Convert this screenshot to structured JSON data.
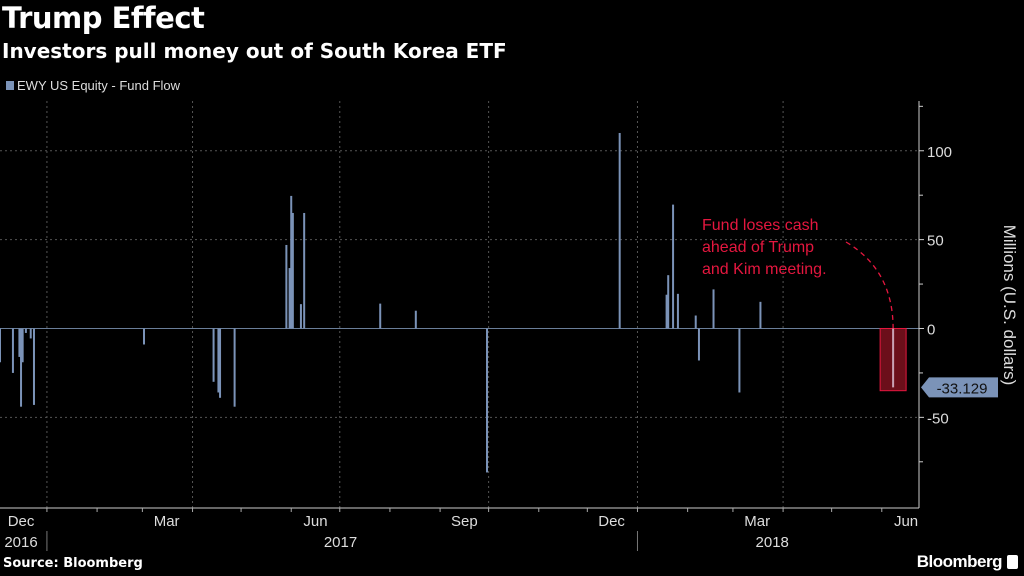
{
  "header": {
    "title": "Trump Effect",
    "subtitle": "Investors pull money out of South Korea ETF"
  },
  "footer": {
    "source": "Source: Bloomberg",
    "brand": "Bloomberg"
  },
  "chart_data": {
    "type": "bar",
    "title": "Trump Effect",
    "subtitle": "Investors pull money out of South Korea ETF",
    "ylabel": "Millions (U.S. dollars)",
    "xlabel": "",
    "ylim": [
      -101,
      128
    ],
    "xlim": [
      "2016-12-03",
      "2018-06-24"
    ],
    "yaxis_side": "right",
    "yticks": [
      100,
      50,
      0,
      -50
    ],
    "ytick_labels": [
      "100",
      "50",
      "0",
      "-50"
    ],
    "xtick_labels": [
      {
        "month": "Dec",
        "date": "2016-12-16",
        "year": "2016"
      },
      {
        "month": "Mar",
        "date": "2017-03-16"
      },
      {
        "month": "Jun",
        "date": "2017-06-16",
        "year": "2017"
      },
      {
        "month": "Sep",
        "date": "2017-09-16"
      },
      {
        "month": "Dec",
        "date": "2017-12-16"
      },
      {
        "month": "Mar",
        "date": "2018-03-16",
        "year": "2018"
      },
      {
        "month": "Jun",
        "date": "2018-06-16"
      }
    ],
    "grid": true,
    "legend": {
      "position": "top-left"
    },
    "colors": {
      "bar": "#7b93b8",
      "highlight": "#e5173f",
      "highlight_fill": "#6b0f1a",
      "grid": "#555555"
    },
    "series": [
      {
        "name": "EWY US Equity - Fund Flow",
        "points": [
          {
            "date": "2016-12-03",
            "value": -19
          },
          {
            "date": "2016-12-11",
            "value": -25
          },
          {
            "date": "2016-12-15",
            "value": -16
          },
          {
            "date": "2016-12-16",
            "value": -44
          },
          {
            "date": "2016-12-17",
            "value": -19
          },
          {
            "date": "2016-12-19",
            "value": -2.5
          },
          {
            "date": "2016-12-22",
            "value": -5.6
          },
          {
            "date": "2016-12-24",
            "value": -43
          },
          {
            "date": "2017-03-02",
            "value": -9
          },
          {
            "date": "2017-04-14",
            "value": -30
          },
          {
            "date": "2017-04-17",
            "value": -36
          },
          {
            "date": "2017-04-18",
            "value": -39
          },
          {
            "date": "2017-04-27",
            "value": -44
          },
          {
            "date": "2017-05-29",
            "value": 47
          },
          {
            "date": "2017-05-31",
            "value": 34
          },
          {
            "date": "2017-06-01",
            "value": 74.6
          },
          {
            "date": "2017-06-02",
            "value": 65
          },
          {
            "date": "2017-06-07",
            "value": 13.7
          },
          {
            "date": "2017-06-09",
            "value": 65
          },
          {
            "date": "2017-07-26",
            "value": 14
          },
          {
            "date": "2017-08-17",
            "value": 10
          },
          {
            "date": "2017-09-30",
            "value": -81
          },
          {
            "date": "2017-12-21",
            "value": 110
          },
          {
            "date": "2018-01-19",
            "value": 19
          },
          {
            "date": "2018-01-20",
            "value": 30
          },
          {
            "date": "2018-01-23",
            "value": 69.7
          },
          {
            "date": "2018-01-26",
            "value": 19.5
          },
          {
            "date": "2018-02-06",
            "value": 7.3
          },
          {
            "date": "2018-02-08",
            "value": -18
          },
          {
            "date": "2018-02-17",
            "value": 22
          },
          {
            "date": "2018-03-05",
            "value": -36
          },
          {
            "date": "2018-03-18",
            "value": 15
          },
          {
            "date": "2018-06-08",
            "value": -33.129
          }
        ]
      }
    ],
    "last_value_label": "-33.129",
    "annotation": {
      "lines": [
        "Fund loses cash",
        "ahead of Trump",
        "and Kim meeting."
      ],
      "target_date": "2018-06-08"
    }
  }
}
